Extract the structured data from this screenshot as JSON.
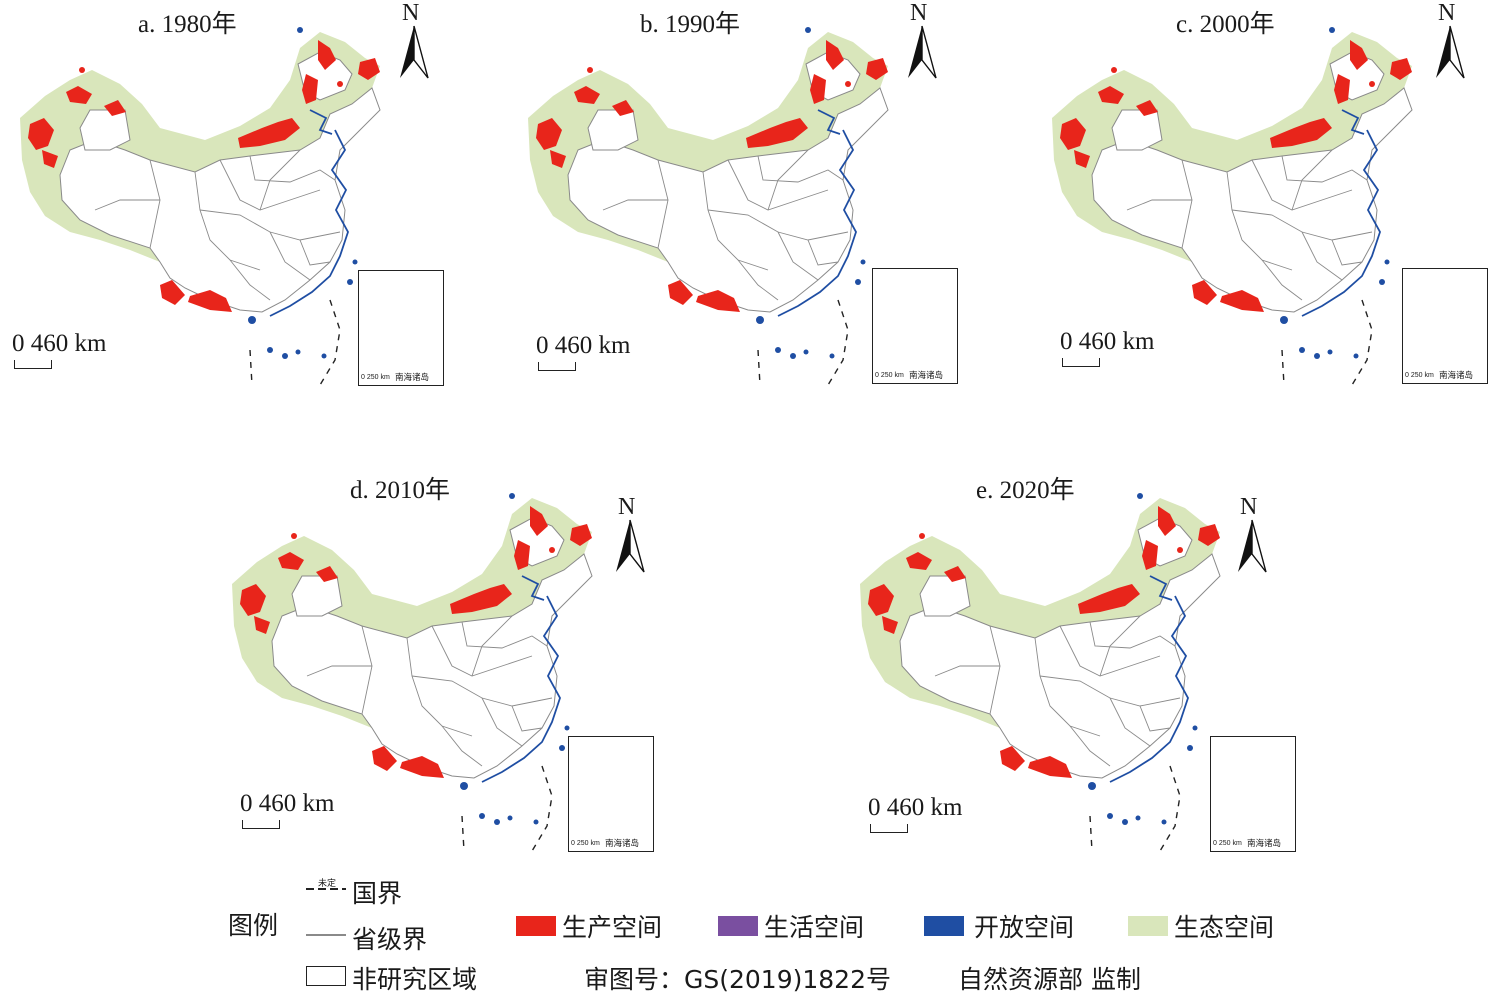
{
  "panels": [
    {
      "title": "a. 1980年"
    },
    {
      "title": "b. 1990年"
    },
    {
      "title": "c. 2000年"
    },
    {
      "title": "d. 2010年"
    },
    {
      "title": "e. 2020年"
    }
  ],
  "map_common": {
    "north_label": "N",
    "scale_text": "0 460 km",
    "inset_scale_text": "0  250 km",
    "inset_label": "南海诸岛"
  },
  "legend": {
    "title": "图例",
    "national_border": "国界",
    "undetermined": "未定",
    "provincial_border": "省级界",
    "non_study_area": "非研究区域",
    "categories": [
      {
        "label": "生产空间",
        "color": "#e8251b"
      },
      {
        "label": "生活空间",
        "color": "#7a4fa0"
      },
      {
        "label": "开放空间",
        "color": "#1f4ea3"
      },
      {
        "label": "生态空间",
        "color": "#d9e6bb"
      }
    ]
  },
  "approval": {
    "number": "审图号：GS(2019)1822号",
    "supervisor": "自然资源部  监制"
  }
}
